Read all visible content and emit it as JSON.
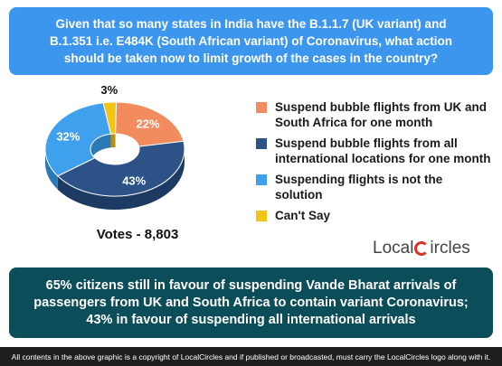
{
  "question": "Given that so many states in India have the B.1.1.7 (UK variant) and B.1.351 i.e. E484K (South African variant) of Coronavirus, what action should be taken now to limit growth of the cases in the country?",
  "votes": "Votes - 8,803",
  "logo": {
    "text_before": "Local",
    "text_after": "ircles"
  },
  "summary": "65% citizens still in favour of suspending Vande Bharat arrivals of passengers from UK and South Africa to contain variant Coronavirus; 43% in favour of suspending all international arrivals",
  "footer": "All contents in the above graphic is a copyright of LocalCircles and if published or broadcasted, must carry the LocalCircles logo along with it.",
  "chart_data": {
    "type": "pie",
    "style": "3d-donut",
    "legend_position": "right",
    "slices": [
      {
        "label": "Suspend bubble flights from UK and South Africa for one month",
        "value": 22,
        "display": "22%",
        "color": "#f28c5e",
        "side": "#c2653d"
      },
      {
        "label": "Suspend bubble flights from all international locations for one month",
        "value": 43,
        "display": "43%",
        "color": "#2c5287",
        "side": "#1d3a63"
      },
      {
        "label": "Suspending flights is not the solution",
        "value": 32,
        "display": "32%",
        "color": "#3fa1ee",
        "side": "#2a78b6"
      },
      {
        "label": "Can't Say",
        "value": 3,
        "display": "3%",
        "color": "#f3c316",
        "side": "#b98f0c"
      }
    ]
  }
}
